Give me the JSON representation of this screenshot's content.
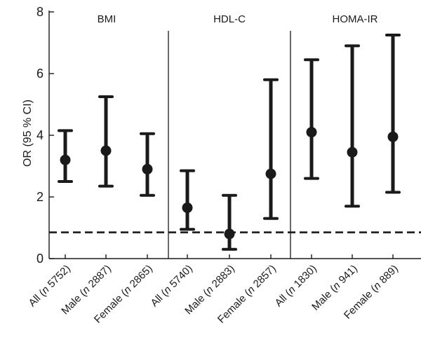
{
  "chart_data": {
    "type": "scatter",
    "subtype": "point-with-error-bars",
    "title": "",
    "ylabel": "OR (95 % CI)",
    "xlabel": "",
    "ylim": [
      0,
      8
    ],
    "yticks": [
      0,
      2,
      4,
      6,
      8
    ],
    "reference_line": {
      "y": 0.85,
      "style": "dashed"
    },
    "grid": false,
    "legend": "none",
    "colors": {
      "marks": "#1a1a1a"
    },
    "panels": [
      {
        "label": "BMI",
        "points": [
          {
            "category": "All",
            "n": "5752",
            "or": 3.2,
            "ci_low": 2.5,
            "ci_high": 4.15
          },
          {
            "category": "Male",
            "n": "2887",
            "or": 3.5,
            "ci_low": 2.35,
            "ci_high": 5.25
          },
          {
            "category": "Female",
            "n": "2865",
            "or": 2.9,
            "ci_low": 2.05,
            "ci_high": 4.05
          }
        ]
      },
      {
        "label": "HDL-C",
        "points": [
          {
            "category": "All",
            "n": "5740",
            "or": 1.65,
            "ci_low": 0.95,
            "ci_high": 2.85
          },
          {
            "category": "Male",
            "n": "2883",
            "or": 0.8,
            "ci_low": 0.3,
            "ci_high": 2.05
          },
          {
            "category": "Female",
            "n": "2857",
            "or": 2.75,
            "ci_low": 1.3,
            "ci_high": 5.8
          }
        ]
      },
      {
        "label": "HOMA-IR",
        "points": [
          {
            "category": "All",
            "n": "1830",
            "or": 4.1,
            "ci_low": 2.6,
            "ci_high": 6.45
          },
          {
            "category": "Male",
            "n": "941",
            "or": 3.45,
            "ci_low": 1.7,
            "ci_high": 6.9
          },
          {
            "category": "Female",
            "n": "889",
            "or": 3.95,
            "ci_low": 2.15,
            "ci_high": 7.25
          }
        ]
      }
    ]
  }
}
